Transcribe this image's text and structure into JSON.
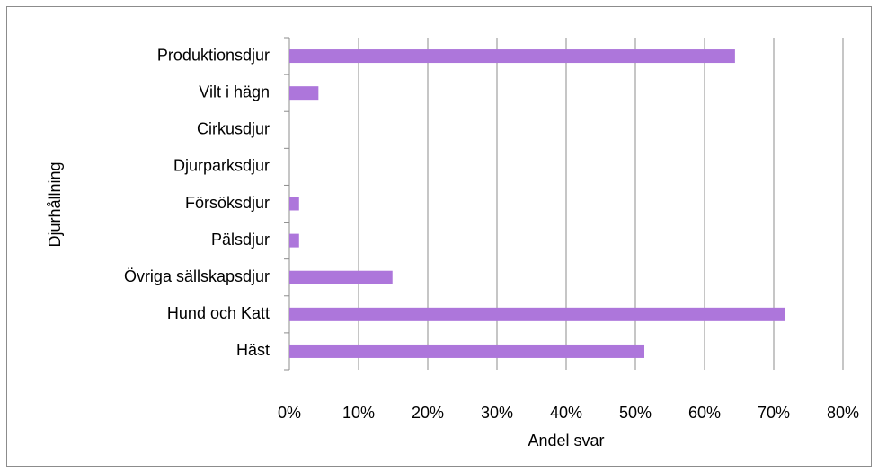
{
  "chart_data": {
    "type": "bar",
    "orientation": "horizontal",
    "y_axis_label": "Djurhållning",
    "x_axis_label": "Andel svar",
    "categories": [
      "Produktionsdjur",
      "Vilt i hägn",
      "Cirkusdjur",
      "Djurparksdjur",
      "Försöksdjur",
      "Pälsdjur",
      "Övriga sällskapsdjur",
      "Hund och Katt",
      "Häst"
    ],
    "values": [
      64.4,
      4.2,
      0,
      0,
      1.4,
      1.4,
      14.9,
      71.6,
      51.3
    ],
    "color": "#ad76db",
    "xlim": [
      0,
      80
    ],
    "xticks": [
      {
        "value": 0,
        "label": "0%"
      },
      {
        "value": 10,
        "label": "10%"
      },
      {
        "value": 20,
        "label": "20%"
      },
      {
        "value": 30,
        "label": "30%"
      },
      {
        "value": 40,
        "label": "40%"
      },
      {
        "value": 50,
        "label": "50%"
      },
      {
        "value": 60,
        "label": "60%"
      },
      {
        "value": 70,
        "label": "70%"
      },
      {
        "value": 80,
        "label": "80%"
      }
    ],
    "grid": true
  }
}
